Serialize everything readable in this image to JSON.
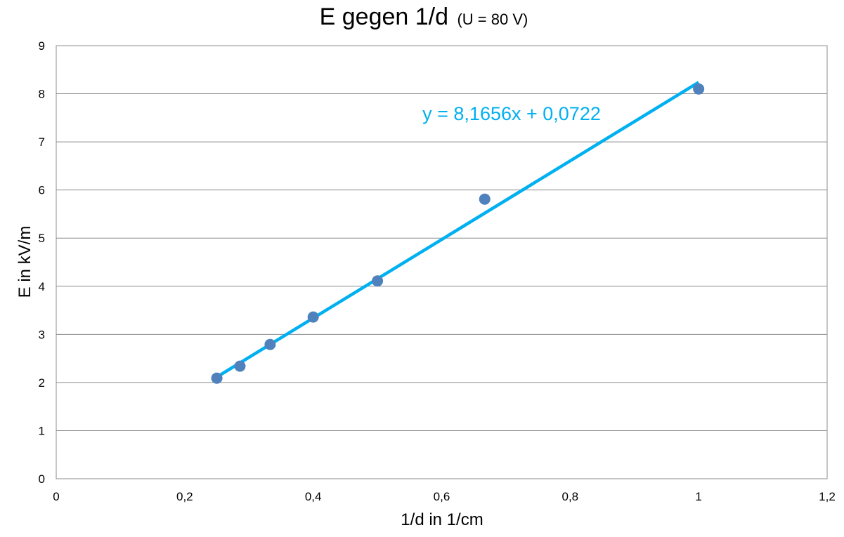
{
  "chart_data": {
    "type": "scatter",
    "title": "E gegen 1/d",
    "subtitle": "(U = 80 V)",
    "xlabel": "1/d in 1/cm",
    "ylabel": "E in kV/m",
    "xlim": [
      0,
      1.2
    ],
    "ylim": [
      0,
      9
    ],
    "x_ticks": [
      0,
      0.2,
      0.4,
      0.6,
      0.8,
      1,
      1.2
    ],
    "x_tick_labels": [
      "0",
      "0,2",
      "0,4",
      "0,6",
      "0,8",
      "1",
      "1,2"
    ],
    "y_ticks": [
      0,
      1,
      2,
      3,
      4,
      5,
      6,
      7,
      8,
      9
    ],
    "y_tick_labels": [
      "0",
      "1",
      "2",
      "3",
      "4",
      "5",
      "6",
      "7",
      "8",
      "9"
    ],
    "grid": "horizontal",
    "series": [
      {
        "x": [
          0.25,
          0.286,
          0.333,
          0.4,
          0.5,
          0.667,
          1.0
        ],
        "y": [
          2.09,
          2.34,
          2.79,
          3.36,
          4.11,
          5.81,
          8.1
        ],
        "color": "#4f81bd"
      }
    ],
    "trendline": {
      "type": "linear",
      "slope": 8.1656,
      "intercept": 0.0722,
      "x_range": [
        0.25,
        1.0
      ],
      "color": "#00b0f0",
      "equation_label": "y = 8,1656x + 0,0722"
    }
  }
}
